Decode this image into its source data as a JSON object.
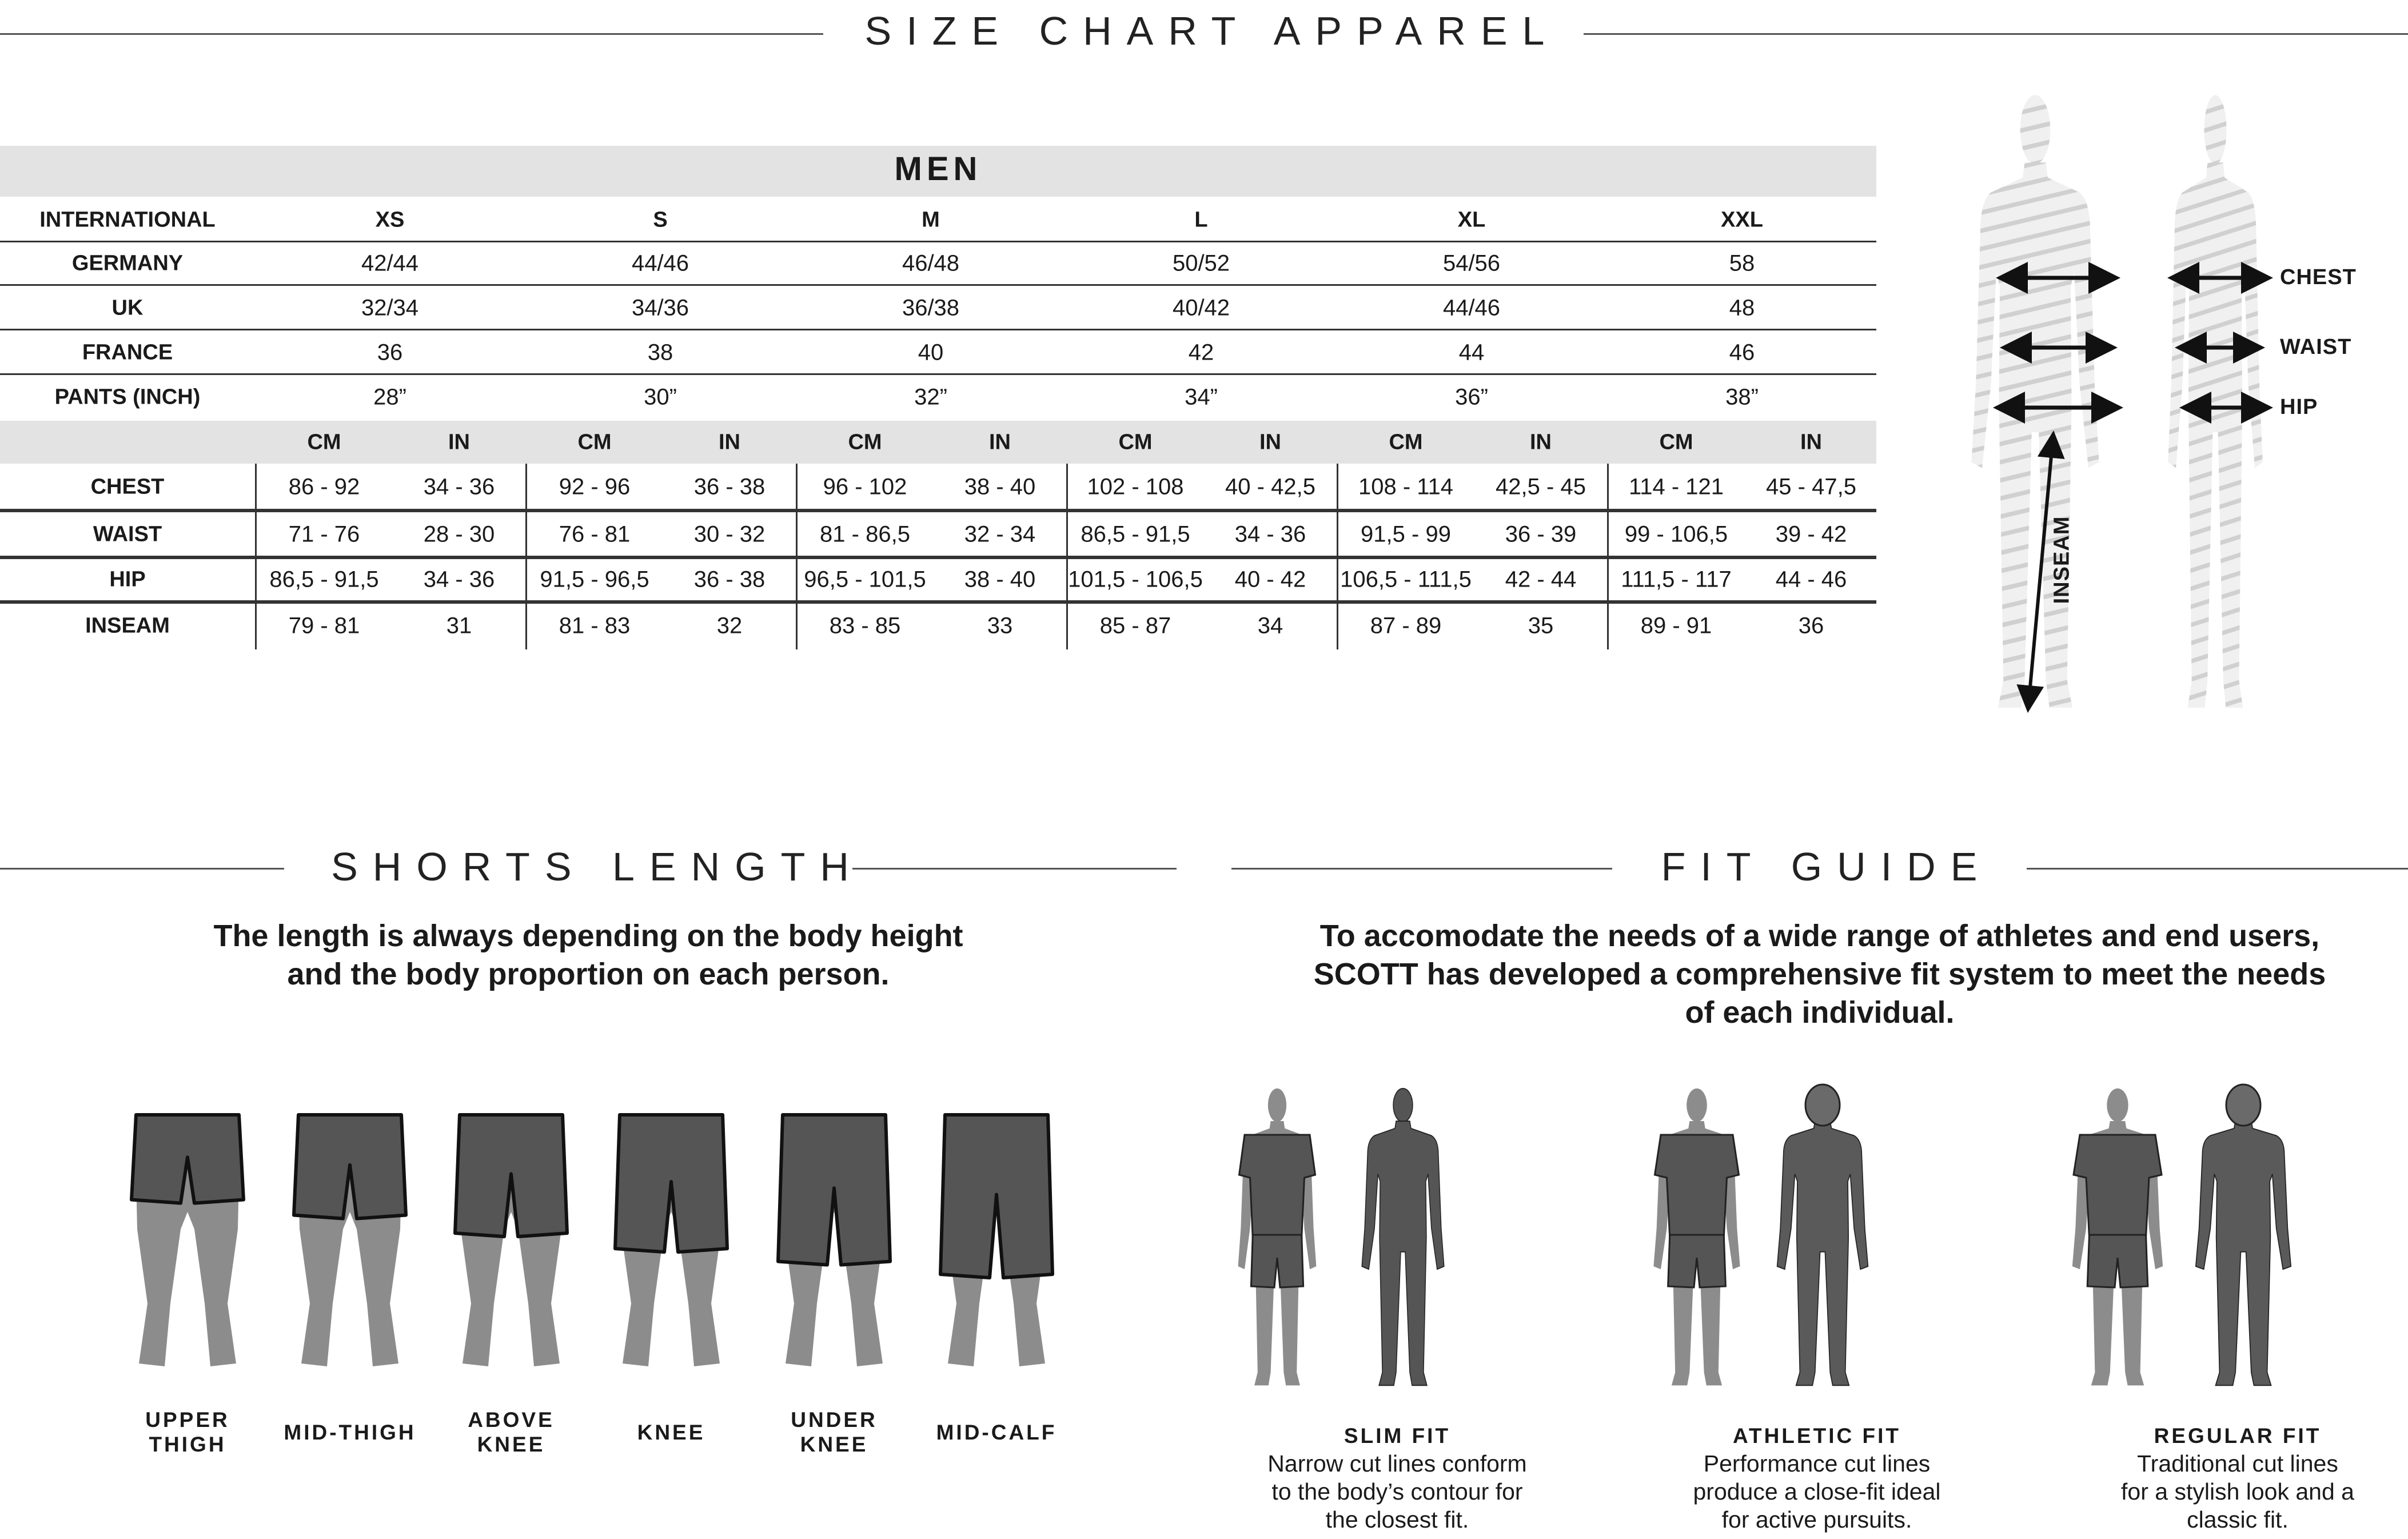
{
  "header": {
    "title": "SIZE CHART APPAREL"
  },
  "size_table": {
    "group_title": "MEN",
    "size_rows": [
      {
        "label": "INTERNATIONAL",
        "values": [
          "XS",
          "S",
          "M",
          "L",
          "XL",
          "XXL"
        ],
        "bold": true
      },
      {
        "label": "GERMANY",
        "values": [
          "42/44",
          "44/46",
          "46/48",
          "50/52",
          "54/56",
          "58"
        ]
      },
      {
        "label": "UK",
        "values": [
          "32/34",
          "34/36",
          "36/38",
          "40/42",
          "44/46",
          "48"
        ]
      },
      {
        "label": "FRANCE",
        "values": [
          "36",
          "38",
          "40",
          "42",
          "44",
          "46"
        ]
      },
      {
        "label": "PANTS (INCH)",
        "values": [
          "28”",
          "30”",
          "32”",
          "34”",
          "36”",
          "38”"
        ]
      }
    ],
    "units": [
      "CM",
      "IN"
    ],
    "measure_rows": [
      {
        "label": "CHEST",
        "values": [
          [
            "86 - 92",
            "34 - 36"
          ],
          [
            "92 - 96",
            "36 - 38"
          ],
          [
            "96 - 102",
            "38 - 40"
          ],
          [
            "102 - 108",
            "40 - 42,5"
          ],
          [
            "108 - 114",
            "42,5 - 45"
          ],
          [
            "114 - 121",
            "45 - 47,5"
          ]
        ]
      },
      {
        "label": "WAIST",
        "values": [
          [
            "71 - 76",
            "28 - 30"
          ],
          [
            "76 - 81",
            "30 - 32"
          ],
          [
            "81 - 86,5",
            "32 - 34"
          ],
          [
            "86,5 - 91,5",
            "34 - 36"
          ],
          [
            "91,5 - 99",
            "36 - 39"
          ],
          [
            "99 - 106,5",
            "39 - 42"
          ]
        ]
      },
      {
        "label": "HIP",
        "values": [
          [
            "86,5 - 91,5",
            "34 - 36"
          ],
          [
            "91,5 - 96,5",
            "36 - 38"
          ],
          [
            "96,5 - 101,5",
            "38 - 40"
          ],
          [
            "101,5 - 106,5",
            "40 - 42"
          ],
          [
            "106,5 - 111,5",
            "42 - 44"
          ],
          [
            "111,5 - 117",
            "44 - 46"
          ]
        ]
      },
      {
        "label": "INSEAM",
        "values": [
          [
            "79 - 81",
            "31"
          ],
          [
            "81 - 83",
            "32"
          ],
          [
            "83 - 85",
            "33"
          ],
          [
            "85 - 87",
            "34"
          ],
          [
            "87 - 89",
            "35"
          ],
          [
            "89 - 91",
            "36"
          ]
        ]
      }
    ]
  },
  "body_diagram": {
    "chest": "CHEST",
    "waist": "WAIST",
    "hip": "HIP",
    "inseam": "INSEAM"
  },
  "shorts_length": {
    "title": "SHORTS LENGTH",
    "description": [
      "The length is always depending on the body height",
      "and the body proportion on each person."
    ],
    "items": [
      {
        "label": [
          "UPPER",
          "THIGH"
        ],
        "length": 0.33
      },
      {
        "label": [
          "MID-THIGH"
        ],
        "length": 0.39
      },
      {
        "label": [
          "ABOVE",
          "KNEE"
        ],
        "length": 0.46
      },
      {
        "label": [
          "KNEE"
        ],
        "length": 0.52
      },
      {
        "label": [
          "UNDER",
          "KNEE"
        ],
        "length": 0.57
      },
      {
        "label": [
          "MID-CALF"
        ],
        "length": 0.62
      }
    ]
  },
  "fit_guide": {
    "title": "FIT GUIDE",
    "description": [
      "To accomodate the needs of a wide range of athletes and end users,",
      "SCOTT has developed a comprehensive fit system to meet the needs",
      "of each individual."
    ],
    "items": [
      {
        "title": "SLIM FIT",
        "text": [
          "Narrow cut lines conform",
          "to the body’s contour for",
          "the closest fit."
        ]
      },
      {
        "title": "ATHLETIC FIT",
        "text": [
          "Performance cut lines",
          "produce a close-fit ideal",
          "for active pursuits."
        ]
      },
      {
        "title": "REGULAR FIT",
        "text": [
          "Traditional cut lines",
          "for a stylish look and a",
          "classic fit."
        ]
      }
    ]
  },
  "colors": {
    "band": "#e3e3e3",
    "figure": "#8c8c8c",
    "garment": "#555555",
    "silhouette": "#e6e6e6"
  }
}
